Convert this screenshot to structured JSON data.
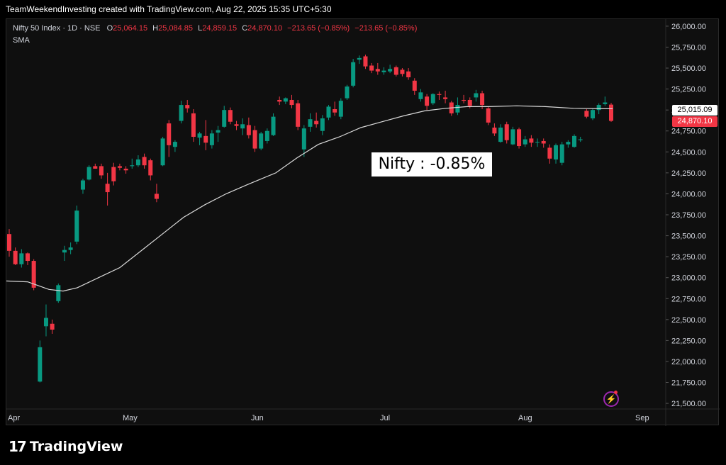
{
  "header": {
    "text": "TeamWeekendInvesting created with TradingView.com, Aug 22, 2025 15:35 UTC+5:30"
  },
  "legend": {
    "symbol": "Nifty 50 Index · 1D · NSE",
    "o_label": "O",
    "o_value": "25,064.15",
    "h_label": "H",
    "h_value": "25,084.85",
    "l_label": "L",
    "l_value": "24,859.15",
    "c_label": "C",
    "c_value": "24,870.10",
    "change": "−213.65 (−0.85%)",
    "change2": "−213.65 (−0.85%)",
    "indicator": "SMA"
  },
  "annotation": "Nifty : -0.85%",
  "price_tags": {
    "sma": "25,015.09",
    "close": "24,870.10"
  },
  "footer": {
    "logo_mark": "17",
    "logo_text": "TradingView"
  },
  "icons": {
    "bolt": "lightning-icon"
  },
  "colors": {
    "up": "#089981",
    "down": "#f23645",
    "sma": "#d9d9d9",
    "background": "#0f0f0f",
    "grid": "#1e1e1e"
  },
  "chart_data": {
    "type": "candlestick",
    "y_ticks": [
      "26,000.00",
      "25,750.00",
      "25,500.00",
      "25,250.00",
      "25,000.00",
      "24,750.00",
      "24,500.00",
      "24,250.00",
      "24,000.00",
      "23,750.00",
      "23,500.00",
      "23,250.00",
      "23,000.00",
      "22,750.00",
      "22,500.00",
      "22,250.00",
      "22,000.00",
      "21,750.00",
      "21,500.00"
    ],
    "x_ticks": [
      "Apr",
      "May",
      "Jun",
      "Jul",
      "Aug",
      "Sep"
    ],
    "ylim": [
      21450,
      26050
    ],
    "candles": [
      [
        23520,
        23580,
        23250,
        23320
      ],
      [
        23320,
        23360,
        23150,
        23160
      ],
      [
        23160,
        23340,
        23120,
        23290
      ],
      [
        23290,
        23300,
        23150,
        23200
      ],
      [
        23200,
        23220,
        22850,
        22880
      ],
      [
        21760,
        22250,
        21750,
        22170
      ],
      [
        22420,
        22680,
        22300,
        22520
      ],
      [
        22450,
        22500,
        22330,
        22380
      ],
      [
        22720,
        22930,
        22700,
        22910
      ],
      [
        23300,
        23380,
        23200,
        23330
      ],
      [
        23330,
        23420,
        23280,
        23360
      ],
      [
        23430,
        23860,
        23400,
        23800
      ],
      [
        24050,
        24180,
        24000,
        24160
      ],
      [
        24170,
        24340,
        24160,
        24320
      ],
      [
        24330,
        24360,
        24300,
        24300
      ],
      [
        24330,
        24360,
        24180,
        24220
      ],
      [
        24120,
        24250,
        23860,
        24020
      ],
      [
        24320,
        24370,
        24100,
        24150
      ],
      [
        24330,
        24360,
        24280,
        24310
      ],
      [
        24300,
        24330,
        24240,
        24280
      ],
      [
        24330,
        24420,
        24300,
        24340
      ],
      [
        24340,
        24460,
        24320,
        24410
      ],
      [
        24440,
        24480,
        24300,
        24340
      ],
      [
        24400,
        24420,
        24160,
        24220
      ],
      [
        24000,
        24120,
        23900,
        23940
      ],
      [
        24340,
        24680,
        24330,
        24660
      ],
      [
        24840,
        24880,
        24440,
        24580
      ],
      [
        24560,
        24640,
        24500,
        24620
      ],
      [
        24870,
        25110,
        24840,
        25060
      ],
      [
        25060,
        25120,
        24970,
        25020
      ],
      [
        24960,
        25010,
        24620,
        24680
      ],
      [
        24670,
        24740,
        24580,
        24720
      ],
      [
        24690,
        24880,
        24520,
        24610
      ],
      [
        24580,
        24760,
        24540,
        24720
      ],
      [
        24730,
        24810,
        24620,
        24760
      ],
      [
        24800,
        25050,
        24790,
        25000
      ],
      [
        25000,
        25030,
        24830,
        24860
      ],
      [
        24830,
        24870,
        24760,
        24810
      ],
      [
        24780,
        24900,
        24700,
        24830
      ],
      [
        24820,
        24910,
        24660,
        24700
      ],
      [
        24760,
        24810,
        24500,
        24540
      ],
      [
        24540,
        24740,
        24520,
        24720
      ],
      [
        24630,
        24780,
        24600,
        24750
      ],
      [
        24700,
        24960,
        24690,
        24920
      ],
      [
        25120,
        25160,
        25060,
        25100
      ],
      [
        25100,
        25150,
        25070,
        25140
      ],
      [
        25120,
        25180,
        25020,
        25060
      ],
      [
        25080,
        25120,
        24760,
        24800
      ],
      [
        24530,
        24820,
        24440,
        24780
      ],
      [
        24800,
        24960,
        24740,
        24890
      ],
      [
        24870,
        24970,
        24790,
        24830
      ],
      [
        24750,
        24940,
        24700,
        24900
      ],
      [
        24910,
        25060,
        24880,
        25040
      ],
      [
        25010,
        25100,
        24930,
        24970
      ],
      [
        24920,
        25140,
        24890,
        25110
      ],
      [
        25140,
        25300,
        25120,
        25280
      ],
      [
        25290,
        25610,
        25270,
        25570
      ],
      [
        25600,
        25650,
        25550,
        25620
      ],
      [
        25640,
        25660,
        25490,
        25520
      ],
      [
        25530,
        25560,
        25440,
        25470
      ],
      [
        25490,
        25560,
        25420,
        25460
      ],
      [
        25450,
        25510,
        25420,
        25470
      ],
      [
        25460,
        25540,
        25440,
        25490
      ],
      [
        25510,
        25530,
        25400,
        25420
      ],
      [
        25480,
        25500,
        25400,
        25430
      ],
      [
        25460,
        25500,
        25360,
        25390
      ],
      [
        25350,
        25380,
        25180,
        25230
      ],
      [
        25130,
        25250,
        25100,
        25210
      ],
      [
        25160,
        25190,
        25000,
        25050
      ],
      [
        25080,
        25200,
        25060,
        25190
      ],
      [
        25190,
        25220,
        25120,
        25180
      ],
      [
        25150,
        25230,
        25080,
        25130
      ],
      [
        25090,
        25110,
        24930,
        24960
      ],
      [
        24970,
        25150,
        24940,
        25060
      ],
      [
        25120,
        25180,
        25080,
        25110
      ],
      [
        25120,
        25150,
        25020,
        25050
      ],
      [
        25150,
        25240,
        25100,
        25200
      ],
      [
        25200,
        25230,
        25010,
        25060
      ],
      [
        25020,
        25040,
        24820,
        24850
      ],
      [
        24790,
        24840,
        24690,
        24720
      ],
      [
        24620,
        24830,
        24610,
        24790
      ],
      [
        24830,
        24860,
        24600,
        24640
      ],
      [
        24590,
        24800,
        24580,
        24770
      ],
      [
        24770,
        24790,
        24540,
        24570
      ],
      [
        24590,
        24690,
        24560,
        24650
      ],
      [
        24660,
        24700,
        24560,
        24610
      ],
      [
        24620,
        24660,
        24560,
        24620
      ],
      [
        24630,
        24660,
        24550,
        24600
      ],
      [
        24550,
        24590,
        24360,
        24420
      ],
      [
        24410,
        24600,
        24360,
        24580
      ],
      [
        24370,
        24620,
        24340,
        24590
      ],
      [
        24590,
        24640,
        24550,
        24620
      ],
      [
        24560,
        24710,
        24550,
        24690
      ],
      [
        24640,
        24680,
        24620,
        24650
      ],
      [
        24990,
        25010,
        24900,
        24920
      ],
      [
        24900,
        25020,
        24880,
        25000
      ],
      [
        25000,
        25080,
        24950,
        25060
      ],
      [
        25070,
        25160,
        25050,
        25090
      ],
      [
        25064,
        25085,
        24859,
        24870
      ]
    ],
    "sma": [
      [
        0,
        22960
      ],
      [
        30,
        22950
      ],
      [
        60,
        22860
      ],
      [
        80,
        22840
      ],
      [
        100,
        22880
      ],
      [
        130,
        23000
      ],
      [
        160,
        23120
      ],
      [
        190,
        23320
      ],
      [
        220,
        23520
      ],
      [
        250,
        23720
      ],
      [
        280,
        23870
      ],
      [
        310,
        24000
      ],
      [
        340,
        24110
      ],
      [
        380,
        24250
      ],
      [
        410,
        24430
      ],
      [
        440,
        24590
      ],
      [
        470,
        24680
      ],
      [
        500,
        24790
      ],
      [
        530,
        24860
      ],
      [
        560,
        24930
      ],
      [
        590,
        24990
      ],
      [
        620,
        25020
      ],
      [
        650,
        25040
      ],
      [
        680,
        25040
      ],
      [
        720,
        25050
      ],
      [
        760,
        25040
      ],
      [
        800,
        25020
      ],
      [
        840,
        25015
      ],
      [
        855,
        25015
      ]
    ]
  }
}
